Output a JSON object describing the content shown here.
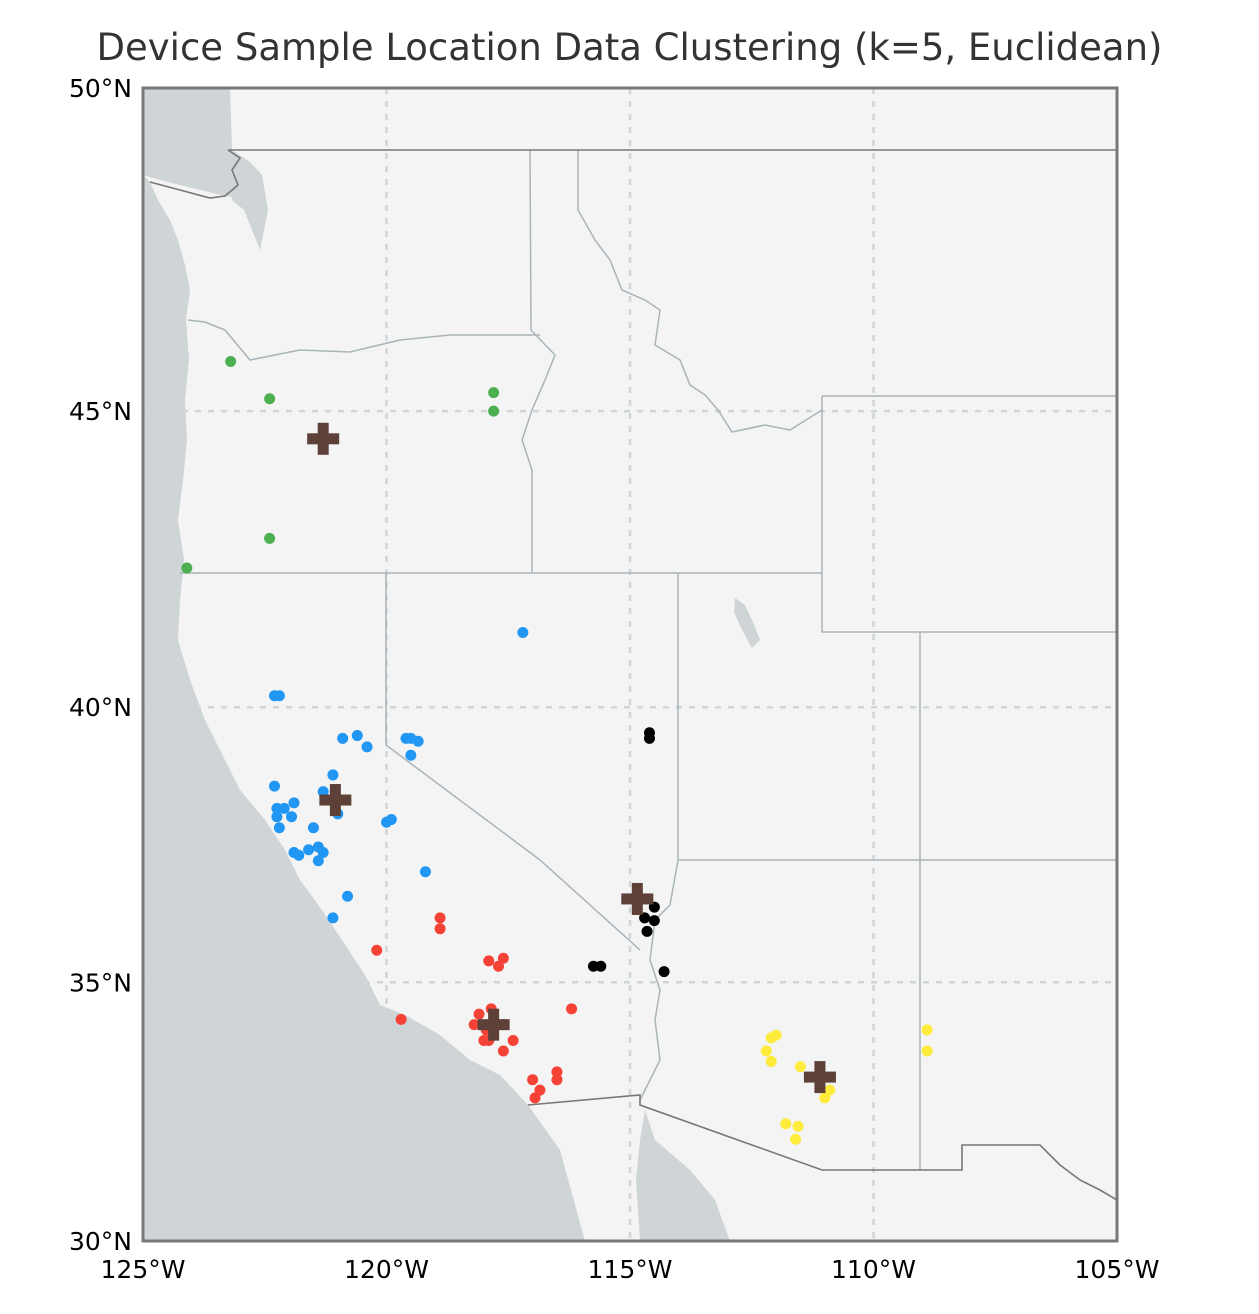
{
  "chart_data": {
    "type": "scatter",
    "title": "Device Sample Location Data Clustering (k=5, Euclidean)",
    "xlim": [
      -125,
      -105
    ],
    "ylim": [
      30,
      50
    ],
    "x_ticks": [
      -125,
      -120,
      -115,
      -110,
      -105
    ],
    "y_ticks": [
      30,
      35,
      40,
      45,
      50
    ],
    "x_tick_labels": [
      "125°W",
      "120°W",
      "115°W",
      "110°W",
      "105°W"
    ],
    "y_tick_labels": [
      "30°N",
      "35°N",
      "40°N",
      "45°N",
      "50°N"
    ],
    "grid": true,
    "legend": "none",
    "colors": {
      "land": "#f4f4f4",
      "ocean": "#cfd4d6",
      "state_border": "#a9b4ba",
      "country_border": "#777777",
      "grid": "#cfd6da",
      "centroid": "#5d4037"
    },
    "series": [
      {
        "color": "#4caf50",
        "points": [
          [
            -123.2,
            45.8
          ],
          [
            -122.4,
            45.2
          ],
          [
            -117.8,
            45.3
          ],
          [
            -117.8,
            45.0
          ],
          [
            -122.4,
            42.9
          ],
          [
            -124.1,
            42.4
          ]
        ]
      },
      {
        "color": "#2196f3",
        "points": [
          [
            -117.2,
            41.3
          ],
          [
            -122.3,
            40.2
          ],
          [
            -122.2,
            40.2
          ],
          [
            -120.9,
            39.45
          ],
          [
            -120.6,
            39.5
          ],
          [
            -120.4,
            39.3
          ],
          [
            -119.6,
            39.45
          ],
          [
            -119.5,
            39.45
          ],
          [
            -119.35,
            39.4
          ],
          [
            -119.5,
            39.15
          ],
          [
            -121.1,
            38.8
          ],
          [
            -122.3,
            38.6
          ],
          [
            -121.3,
            38.5
          ],
          [
            -121.0,
            38.1
          ],
          [
            -122.25,
            38.2
          ],
          [
            -122.25,
            38.05
          ],
          [
            -122.1,
            38.2
          ],
          [
            -121.9,
            38.3
          ],
          [
            -121.95,
            38.05
          ],
          [
            -122.2,
            37.85
          ],
          [
            -121.5,
            37.85
          ],
          [
            -120.0,
            37.95
          ],
          [
            -119.9,
            38.0
          ],
          [
            -121.9,
            37.4
          ],
          [
            -121.8,
            37.35
          ],
          [
            -121.6,
            37.45
          ],
          [
            -121.4,
            37.5
          ],
          [
            -121.3,
            37.4
          ],
          [
            -121.4,
            37.25
          ],
          [
            -119.2,
            37.05
          ],
          [
            -120.8,
            36.6
          ],
          [
            -121.1,
            36.2
          ]
        ]
      },
      {
        "color": "#f44336",
        "points": [
          [
            -118.9,
            36.2
          ],
          [
            -118.9,
            36.0
          ],
          [
            -120.2,
            35.6
          ],
          [
            -117.9,
            35.4
          ],
          [
            -117.6,
            35.45
          ],
          [
            -117.7,
            35.3
          ],
          [
            -116.2,
            34.5
          ],
          [
            -119.7,
            34.3
          ],
          [
            -117.85,
            34.5
          ],
          [
            -118.1,
            34.4
          ],
          [
            -118.2,
            34.2
          ],
          [
            -117.95,
            34.1
          ],
          [
            -117.6,
            34.2
          ],
          [
            -117.9,
            33.9
          ],
          [
            -118.0,
            33.9
          ],
          [
            -117.4,
            33.9
          ],
          [
            -117.6,
            33.7
          ],
          [
            -116.5,
            33.3
          ],
          [
            -116.5,
            33.15
          ],
          [
            -117.0,
            33.15
          ],
          [
            -116.85,
            32.95
          ],
          [
            -116.95,
            32.8
          ]
        ]
      },
      {
        "color": "#000000",
        "points": [
          [
            -114.6,
            39.55
          ],
          [
            -114.6,
            39.45
          ],
          [
            -114.7,
            36.2
          ],
          [
            -114.5,
            36.4
          ],
          [
            -114.5,
            36.15
          ],
          [
            -114.65,
            35.95
          ],
          [
            -115.6,
            35.3
          ],
          [
            -115.75,
            35.3
          ],
          [
            -114.3,
            35.2
          ]
        ]
      },
      {
        "color": "#ffeb3b",
        "points": [
          [
            -112.0,
            34.0
          ],
          [
            -112.1,
            33.95
          ],
          [
            -112.2,
            33.7
          ],
          [
            -112.1,
            33.5
          ],
          [
            -111.5,
            33.4
          ],
          [
            -110.9,
            32.95
          ],
          [
            -111.0,
            32.8
          ],
          [
            -108.9,
            34.1
          ],
          [
            -108.9,
            33.7
          ],
          [
            -111.8,
            32.3
          ],
          [
            -111.55,
            32.25
          ],
          [
            -111.6,
            32.0
          ]
        ]
      }
    ],
    "centroids": [
      [
        -121.3,
        44.55
      ],
      [
        -121.05,
        38.35
      ],
      [
        -117.8,
        34.2
      ],
      [
        -114.85,
        36.55
      ],
      [
        -111.1,
        33.2
      ]
    ]
  }
}
